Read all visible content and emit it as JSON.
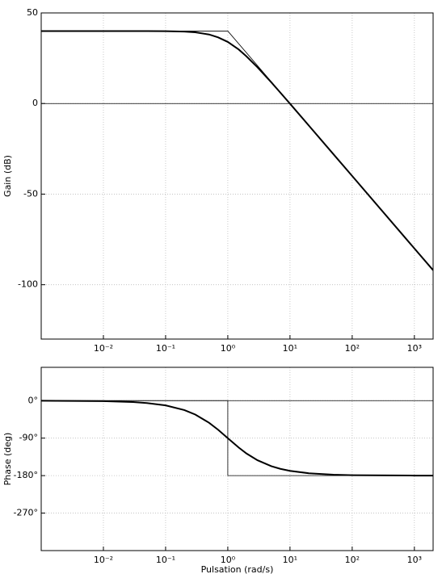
{
  "chart_data": [
    {
      "type": "line",
      "ylabel": "Gain (dB)",
      "xscale": "log",
      "xlim": [
        0.001,
        2000
      ],
      "ylim": [
        -130,
        50
      ],
      "xticks": [
        {
          "value": 0.01,
          "label": "10⁻²"
        },
        {
          "value": 0.1,
          "label": "10⁻¹"
        },
        {
          "value": 1,
          "label": "10⁰"
        },
        {
          "value": 10,
          "label": "10¹"
        },
        {
          "value": 100,
          "label": "10²"
        },
        {
          "value": 1000,
          "label": "10³"
        }
      ],
      "yticks": [
        50,
        0,
        -50,
        -100
      ],
      "grid": true,
      "hlines": [
        0
      ],
      "series": [
        {
          "color": "#000000",
          "width": 2,
          "x": [
            0.001,
            0.01,
            0.03,
            0.05,
            0.1,
            0.2,
            0.3,
            0.5,
            0.7,
            1,
            1.5,
            2,
            3,
            5,
            7,
            10,
            20,
            50,
            100,
            1000,
            2000
          ],
          "values": [
            40,
            40,
            40,
            40,
            39.9,
            39.7,
            39.3,
            38.1,
            36.5,
            34,
            29.8,
            26,
            20,
            11.7,
            6,
            -0.1,
            -12.1,
            -28,
            -40,
            -80,
            -92
          ]
        },
        {
          "color": "#000000",
          "width": 0.8,
          "x": [
            0.001,
            1,
            2000
          ],
          "values": [
            40,
            40,
            -92
          ]
        }
      ]
    },
    {
      "type": "line",
      "ylabel": "Phase (deg)",
      "xlabel": "Pulsation (rad/s)",
      "xscale": "log",
      "xlim": [
        0.001,
        2000
      ],
      "ylim": [
        -360,
        80
      ],
      "xticks": [
        {
          "value": 0.01,
          "label": "10⁻²"
        },
        {
          "value": 0.1,
          "label": "10⁻¹"
        },
        {
          "value": 1,
          "label": "10⁰"
        },
        {
          "value": 10,
          "label": "10¹"
        },
        {
          "value": 100,
          "label": "10²"
        },
        {
          "value": 1000,
          "label": "10³"
        }
      ],
      "yticks": [
        {
          "value": 0,
          "label": "0°"
        },
        {
          "value": -90,
          "label": "-90°"
        },
        {
          "value": -180,
          "label": "-180°"
        },
        {
          "value": -270,
          "label": "-270°"
        }
      ],
      "grid": true,
      "hlines": [
        0
      ],
      "series": [
        {
          "color": "#000000",
          "width": 2,
          "x": [
            0.001,
            0.01,
            0.03,
            0.05,
            0.1,
            0.2,
            0.3,
            0.5,
            0.7,
            1,
            1.5,
            2,
            3,
            5,
            7,
            10,
            20,
            50,
            100,
            1000,
            2000
          ],
          "values": [
            -0.1,
            -1.1,
            -3.4,
            -5.7,
            -11.4,
            -22.6,
            -33.4,
            -53.1,
            -70,
            -90,
            -112.6,
            -126.9,
            -143.1,
            -157.4,
            -163.7,
            -168.6,
            -174.3,
            -177.7,
            -178.9,
            -179.9,
            -179.9
          ]
        },
        {
          "color": "#000000",
          "width": 0.8,
          "x": [
            0.001,
            1,
            1,
            2000
          ],
          "values": [
            0,
            0,
            -180,
            -180
          ]
        }
      ]
    }
  ]
}
